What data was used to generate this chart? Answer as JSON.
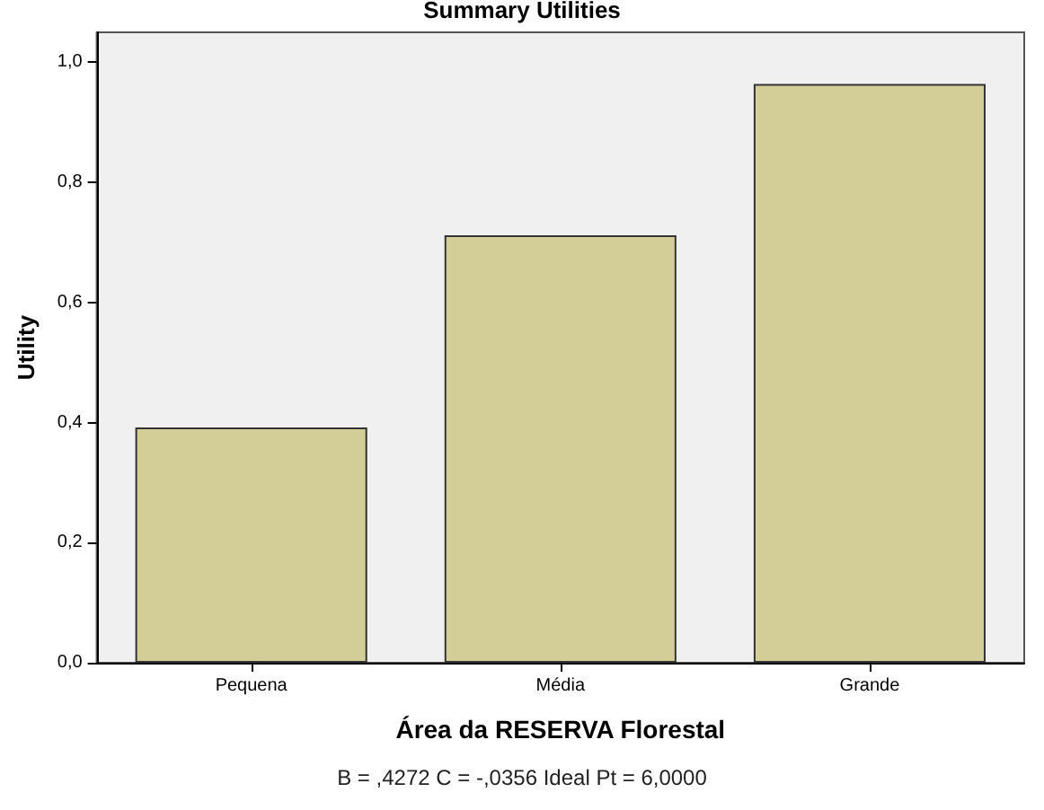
{
  "chart_data": {
    "type": "bar",
    "title": "Summary Utilities",
    "xlabel": "Área da RESERVA Florestal",
    "ylabel": "Utility",
    "categories": [
      "Pequena",
      "Média",
      "Grande"
    ],
    "values": [
      0.392,
      0.712,
      0.964
    ],
    "color": "#d3ce97",
    "ylim": [
      0,
      1.05
    ],
    "yticks": [
      {
        "value": 0,
        "label": "0,0"
      },
      {
        "value": 0.2,
        "label": "0,2"
      },
      {
        "value": 0.4,
        "label": "0,4"
      },
      {
        "value": 0.6,
        "label": "0,6"
      },
      {
        "value": 0.8,
        "label": "0,8"
      },
      {
        "value": 1,
        "label": "1,0"
      }
    ],
    "grid": false,
    "annotations": [
      "B = ,4272 C = -,0356 Ideal Pt = 6,0000"
    ]
  }
}
